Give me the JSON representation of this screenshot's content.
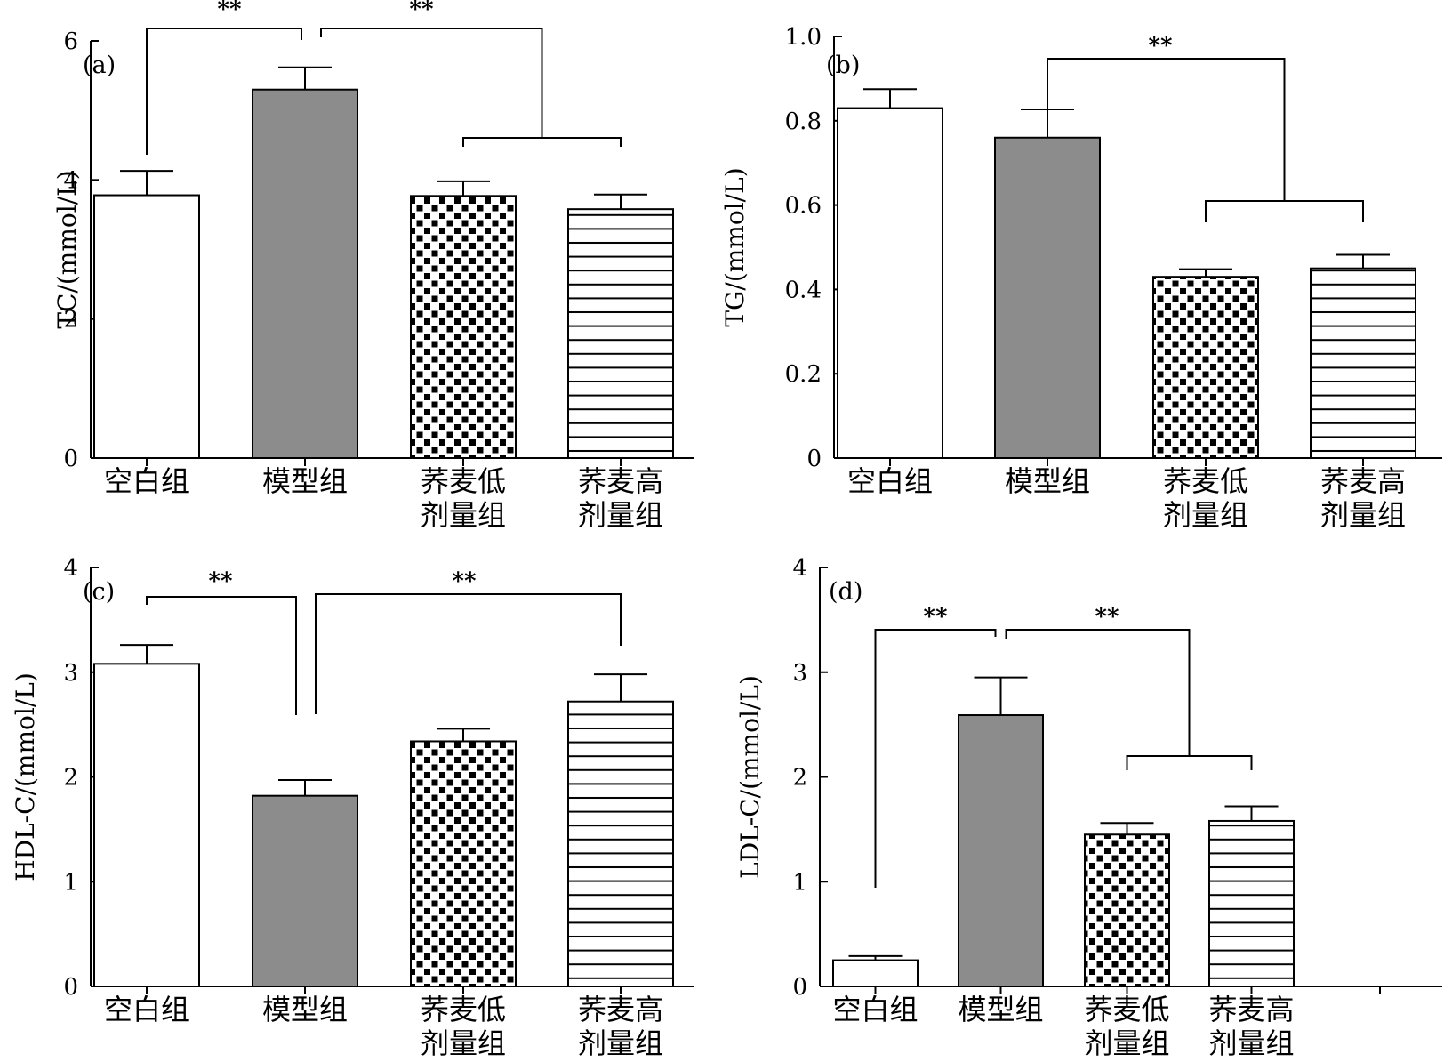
{
  "figure": {
    "fills": {
      "open": "#ffffff",
      "model": "#8c8c8c",
      "ink": "#000000"
    },
    "categories": [
      [
        "空白组"
      ],
      [
        "模型组"
      ],
      [
        "荞麦低",
        "剂量组"
      ],
      [
        "荞麦高",
        "剂量组"
      ]
    ],
    "bar_patterns": [
      "open",
      "solid-gray",
      "dotted",
      "horizontal-stripes"
    ]
  },
  "chart_data": [
    {
      "type": "bar",
      "panel_label": "(a)",
      "ylabel": "TC/(mmol/L)",
      "ylim": [
        0,
        6
      ],
      "yticks": [
        0,
        2,
        4,
        6
      ],
      "ytick_labels": [
        "0",
        "2",
        "4",
        "6"
      ],
      "categories": [
        "空白组",
        "模型组",
        "荞麦低剂量组",
        "荞麦高剂量组"
      ],
      "values": [
        3.78,
        5.3,
        3.77,
        3.58
      ],
      "errors": [
        0.35,
        0.32,
        0.21,
        0.21
      ],
      "significance": [
        {
          "label": "**",
          "from": [
            0
          ],
          "to": [
            1
          ]
        },
        {
          "label": "**",
          "from": [
            1
          ],
          "to": [
            2,
            3
          ]
        }
      ]
    },
    {
      "type": "bar",
      "panel_label": "(b)",
      "ylabel": "TG/(mmol/L)",
      "ylim": [
        0,
        1.0
      ],
      "yticks": [
        0,
        0.2,
        0.4,
        0.6,
        0.8,
        1.0
      ],
      "ytick_labels": [
        "0",
        "0.2",
        "0.4",
        "0.6",
        "0.8",
        "1.0"
      ],
      "categories": [
        "空白组",
        "模型组",
        "荞麦低剂量组",
        "荞麦高剂量组"
      ],
      "values": [
        0.83,
        0.76,
        0.43,
        0.45
      ],
      "errors": [
        0.045,
        0.067,
        0.018,
        0.032
      ],
      "significance": [
        {
          "label": "**",
          "from": [
            1
          ],
          "to": [
            2,
            3
          ]
        }
      ]
    },
    {
      "type": "bar",
      "panel_label": "(c)",
      "ylabel": "HDL-C/(mmol/L)",
      "ylim": [
        0,
        4
      ],
      "yticks": [
        0,
        1,
        2,
        3,
        4
      ],
      "ytick_labels": [
        "0",
        "1",
        "2",
        "3",
        "4"
      ],
      "categories": [
        "空白组",
        "模型组",
        "荞麦低剂量组",
        "荞麦高剂量组"
      ],
      "values": [
        3.08,
        1.82,
        2.34,
        2.72
      ],
      "errors": [
        0.18,
        0.15,
        0.12,
        0.26
      ],
      "significance": [
        {
          "label": "**",
          "from": [
            0
          ],
          "to": [
            1
          ]
        },
        {
          "label": "**",
          "from": [
            1
          ],
          "to": [
            3
          ]
        }
      ]
    },
    {
      "type": "bar",
      "panel_label": "(d)",
      "ylabel": "LDL-C/(mmol/L)",
      "ylim": [
        0,
        4
      ],
      "yticks": [
        0,
        1,
        2,
        3,
        4
      ],
      "ytick_labels": [
        "0",
        "1",
        "2",
        "3",
        "4"
      ],
      "categories": [
        "空白组",
        "模型组",
        "荞麦低剂量组",
        "荞麦高剂量组"
      ],
      "values": [
        0.25,
        2.59,
        1.45,
        1.58
      ],
      "errors": [
        0.04,
        0.36,
        0.11,
        0.14
      ],
      "significance": [
        {
          "label": "**",
          "from": [
            0
          ],
          "to": [
            1
          ]
        },
        {
          "label": "**",
          "from": [
            1
          ],
          "to": [
            2,
            3
          ]
        }
      ]
    }
  ]
}
